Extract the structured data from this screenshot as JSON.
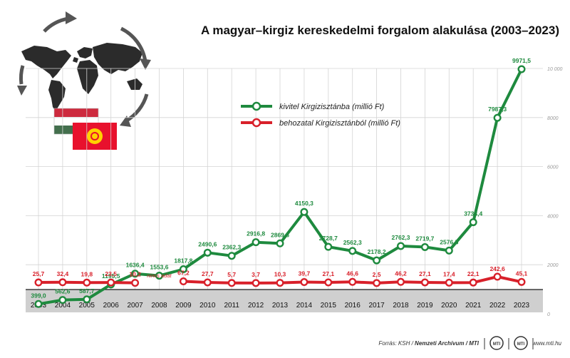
{
  "title": "A magyar–kirgiz kereskedelmi forgalom alakulása (2003–2023)",
  "footer": {
    "source_prefix": "Forrás: KSH / ",
    "source_bold": "Nemzeti Archívum / MTI",
    "logo1": "MTI",
    "logo2": "MTI",
    "website": "www.mti.hu"
  },
  "colors": {
    "export": "#1e8a3e",
    "import": "#d8202a",
    "grid": "#d4d4d4",
    "axis_band": "#cfcfcf",
    "title": "#111111"
  },
  "icons": [
    "world-map-icon",
    "rotation-arrows-icon",
    "hungary-flag-icon",
    "kyrgyzstan-flag-icon"
  ],
  "chart_data": {
    "type": "line",
    "title": "A magyar–kirgiz kereskedelmi forgalom alakulása (2003–2023)",
    "x": [
      "2003",
      "2004",
      "2005",
      "2006",
      "2007",
      "2008",
      "2009",
      "2010",
      "2011",
      "2012",
      "2013",
      "2014",
      "2015",
      "2016",
      "2017",
      "2018",
      "2019",
      "2020",
      "2021",
      "2022",
      "2023"
    ],
    "ylim": [
      0,
      10000
    ],
    "yticks": [
      0,
      2000,
      4000,
      6000,
      8000,
      10000
    ],
    "ytick_labels": [
      "0",
      "2000",
      "4000",
      "6000",
      "8000",
      "10 000"
    ],
    "grid": true,
    "legend_position": "top-center",
    "missing_note": "nincs adat",
    "series": [
      {
        "name": "kivitel Kirgizisztánba (millió Ft)",
        "color": "#1e8a3e",
        "values": [
          399.0,
          562.6,
          587.7,
          1195.5,
          1636.4,
          1553.6,
          1817.8,
          2490.6,
          2362.3,
          2916.8,
          2869.6,
          4150.3,
          2728.7,
          2562.3,
          2178.2,
          2762.3,
          2719.7,
          2576.5,
          3733.4,
          7987.3,
          9971.5
        ],
        "labels": [
          "399,0",
          "562,6",
          "587,7",
          "1195,5",
          "1636,4",
          "1553,6",
          "1817,8",
          "2490,6",
          "2362,3",
          "2916,8",
          "2869,6",
          "4150,3",
          "2728,7",
          "2562,3",
          "2178,2",
          "2762,3",
          "2719,7",
          "2576,5",
          "3733,4",
          "7987,3",
          "9971,5"
        ]
      },
      {
        "name": "behozatal Kirgizisztánból (millió Ft)",
        "color": "#d8202a",
        "values": [
          25.7,
          32.4,
          19.8,
          23.5,
          10.2,
          null,
          67.2,
          27.7,
          5.7,
          3.7,
          10.3,
          39.7,
          27.1,
          46.6,
          2.5,
          46.2,
          27.1,
          17.4,
          22.1,
          242.6,
          45.1
        ],
        "labels": [
          "25,7",
          "32,4",
          "19,8",
          "23,5",
          "10,2",
          "",
          "67,2",
          "27,7",
          "5,7",
          "3,7",
          "10,3",
          "39,7",
          "27,1",
          "46,6",
          "2,5",
          "46,2",
          "27,1",
          "17,4",
          "22,1",
          "242,6",
          "45,1"
        ]
      }
    ]
  }
}
